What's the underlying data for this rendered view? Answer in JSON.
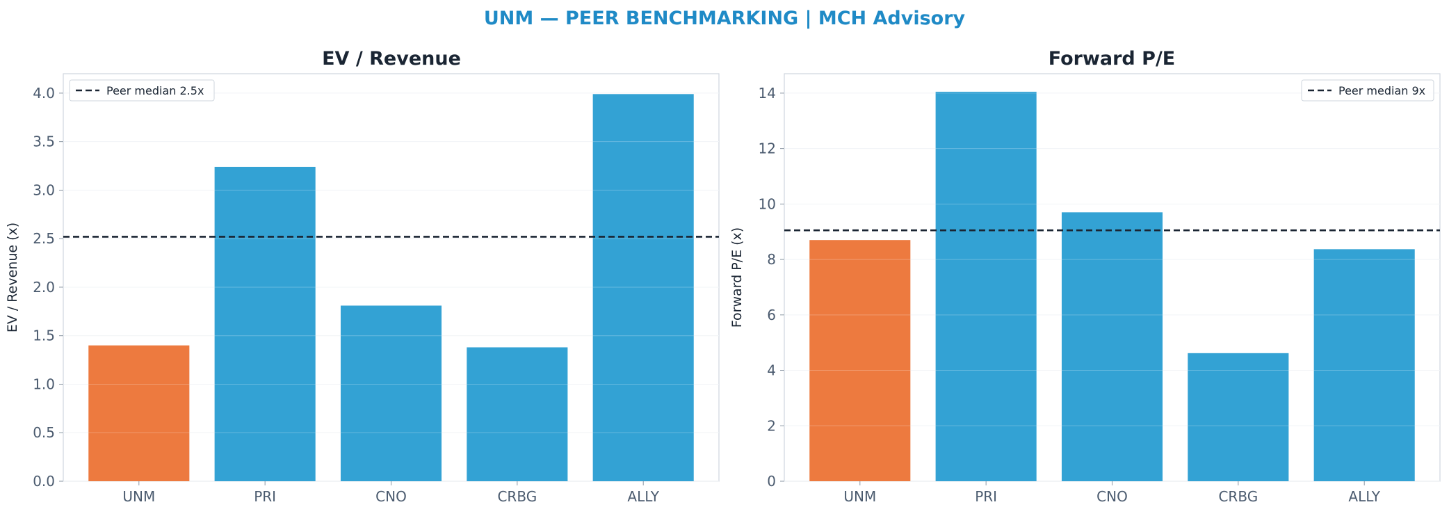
{
  "suptitle": "UNM — PEER BENCHMARKING | MCH Advisory",
  "colors": {
    "highlight": "#ed7a3f",
    "peer": "#33a2d4",
    "median_line": "#1a2533",
    "title": "#1f8ac6"
  },
  "chart_data": [
    {
      "type": "bar",
      "title": "EV / Revenue",
      "ylabel": "EV / Revenue (x)",
      "xlabel": "",
      "categories": [
        "UNM",
        "PRI",
        "CNO",
        "CRBG",
        "ALLY"
      ],
      "values": [
        1.4,
        3.24,
        1.81,
        1.38,
        3.99
      ],
      "highlight": "UNM",
      "ylim": [
        0,
        4.2
      ],
      "yticks": [
        0,
        0.5,
        1.0,
        1.5,
        2.0,
        2.5,
        3.0,
        3.5,
        4.0
      ],
      "ytick_labels": [
        "0.0",
        "0.5",
        "1.0",
        "1.5",
        "2.0",
        "2.5",
        "3.0",
        "3.5",
        "4.0"
      ],
      "reference_line": {
        "value": 2.52,
        "label": "Peer median 2.5x"
      },
      "legend": "top-left",
      "grid": "y"
    },
    {
      "type": "bar",
      "title": "Forward P/E",
      "ylabel": "Forward P/E (x)",
      "xlabel": "",
      "categories": [
        "UNM",
        "PRI",
        "CNO",
        "CRBG",
        "ALLY"
      ],
      "values": [
        8.7,
        14.05,
        9.7,
        4.62,
        8.37
      ],
      "highlight": "UNM",
      "ylim": [
        0,
        14.7
      ],
      "yticks": [
        0,
        2,
        4,
        6,
        8,
        10,
        12,
        14
      ],
      "ytick_labels": [
        "0",
        "2",
        "4",
        "6",
        "8",
        "10",
        "12",
        "14"
      ],
      "reference_line": {
        "value": 9.05,
        "label": "Peer median 9x"
      },
      "legend": "top-right",
      "grid": "y"
    }
  ]
}
